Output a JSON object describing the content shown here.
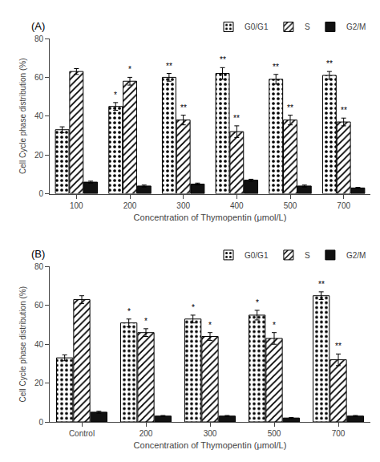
{
  "chart_data": [
    {
      "type": "bar",
      "title": "(A)",
      "xlabel": "Concentration of Thymopentin (μmol/L)",
      "ylabel": "Cell Cycle phase distribution (%)",
      "categories": [
        "100",
        "200",
        "300",
        "400",
        "500",
        "700"
      ],
      "series": [
        {
          "name": "G0/G1",
          "color": "#ffffff",
          "values": [
            33,
            45,
            60,
            62,
            59,
            61
          ],
          "errors": [
            1.5,
            2.0,
            2.0,
            3.0,
            2.5,
            2.0
          ],
          "annotations": [
            null,
            "*",
            "**",
            "**",
            "**",
            "**"
          ]
        },
        {
          "name": "S",
          "color": "#ffffff",
          "values": [
            63,
            58,
            38,
            32,
            38,
            37
          ],
          "errors": [
            1.5,
            2.0,
            2.5,
            3.0,
            2.5,
            2.0
          ],
          "annotations": [
            null,
            "*",
            "**",
            "**",
            "**",
            "**"
          ]
        },
        {
          "name": "G2/M",
          "color": "#111111",
          "values": [
            6,
            4,
            5,
            7,
            4,
            3
          ],
          "errors": [
            0.5,
            0.5,
            0.5,
            0.5,
            0.5,
            0.3
          ]
        }
      ],
      "ylim": [
        0,
        80
      ],
      "yticks": [
        0,
        20,
        40,
        60,
        80
      ],
      "grid": false,
      "legend": "upper right"
    },
    {
      "type": "bar",
      "title": "(B)",
      "xlabel": "Concentration of Thymopentin (μmol/L)",
      "ylabel": "Cell Cycle phase distribution (%)",
      "categories": [
        "Control",
        "200",
        "300",
        "500",
        "700"
      ],
      "series": [
        {
          "name": "G0/G1",
          "color": "#ffffff",
          "values": [
            33,
            51,
            53,
            55,
            65
          ],
          "errors": [
            1.5,
            2.0,
            2.0,
            2.5,
            2.0
          ],
          "annotations": [
            null,
            "*",
            "*",
            "*",
            "**"
          ]
        },
        {
          "name": "S",
          "color": "#ffffff",
          "values": [
            63,
            46,
            44,
            43,
            32
          ],
          "errors": [
            2.0,
            2.0,
            2.0,
            3.0,
            3.0
          ],
          "annotations": [
            null,
            "*",
            "*",
            "*",
            "**"
          ]
        },
        {
          "name": "G2/M",
          "color": "#111111",
          "values": [
            5,
            3,
            3,
            2,
            3
          ],
          "errors": [
            0.5,
            0.3,
            0.3,
            0.3,
            0.3
          ]
        }
      ],
      "ylim": [
        0,
        80
      ],
      "yticks": [
        0,
        20,
        40,
        60,
        80
      ],
      "grid": false,
      "legend": "upper right"
    }
  ]
}
